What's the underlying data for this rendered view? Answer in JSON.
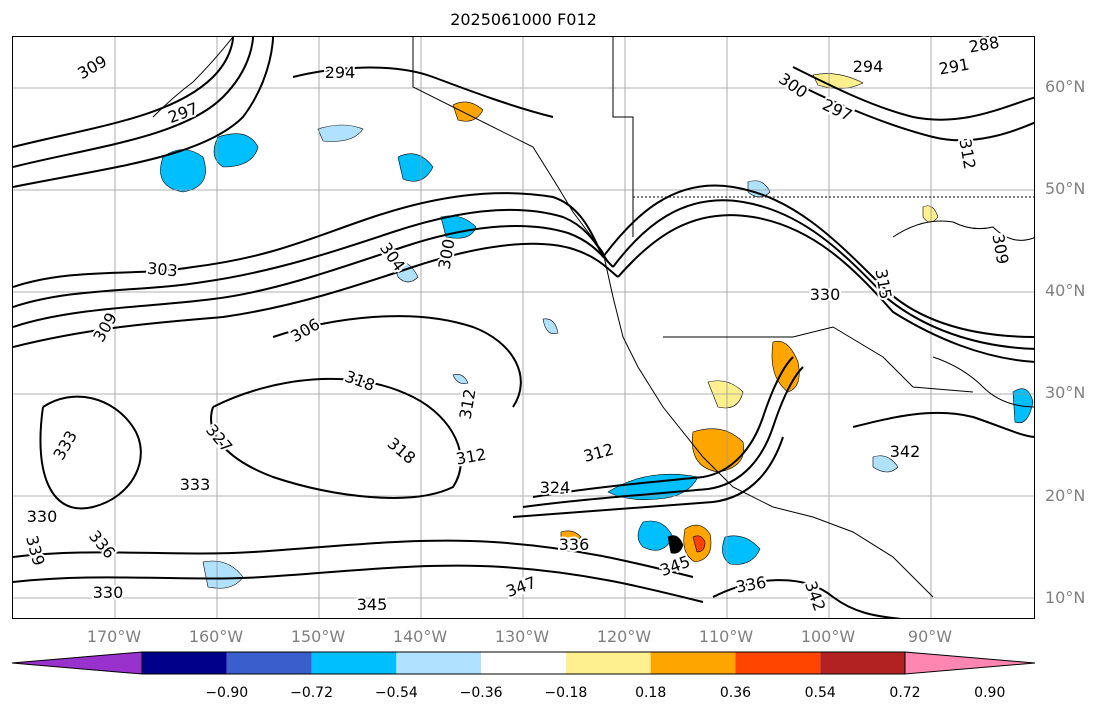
{
  "title": "2025061000 F012",
  "lat_labels": [
    "60°N",
    "50°N",
    "40°N",
    "30°N",
    "20°N",
    "10°N"
  ],
  "lon_labels": [
    "170°W",
    "160°W",
    "150°W",
    "140°W",
    "130°W",
    "120°W",
    "110°W",
    "100°W",
    "90°W"
  ],
  "colorbar": {
    "ticks": [
      "−0.90",
      "−0.72",
      "−0.54",
      "−0.36",
      "−0.18",
      "0.18",
      "0.36",
      "0.54",
      "0.72",
      "0.90"
    ],
    "colors": [
      "#9932cc",
      "#00008b",
      "#3a5fcd",
      "#00bfff",
      "#b0e2ff",
      "#ffffff",
      "#fff08f",
      "#ffa500",
      "#ff4500",
      "#b22222",
      "#ff86b0"
    ]
  },
  "contour_labels": [
    "309",
    "294",
    "297",
    "291",
    "288",
    "300",
    "297",
    "294",
    "312",
    "303",
    "309",
    "306",
    "300",
    "304",
    "318",
    "318",
    "312",
    "312",
    "327",
    "333",
    "333",
    "312",
    "324",
    "330",
    "336",
    "336",
    "339",
    "330",
    "345",
    "347",
    "345",
    "342",
    "336",
    "342",
    "330",
    "315",
    "309"
  ]
}
